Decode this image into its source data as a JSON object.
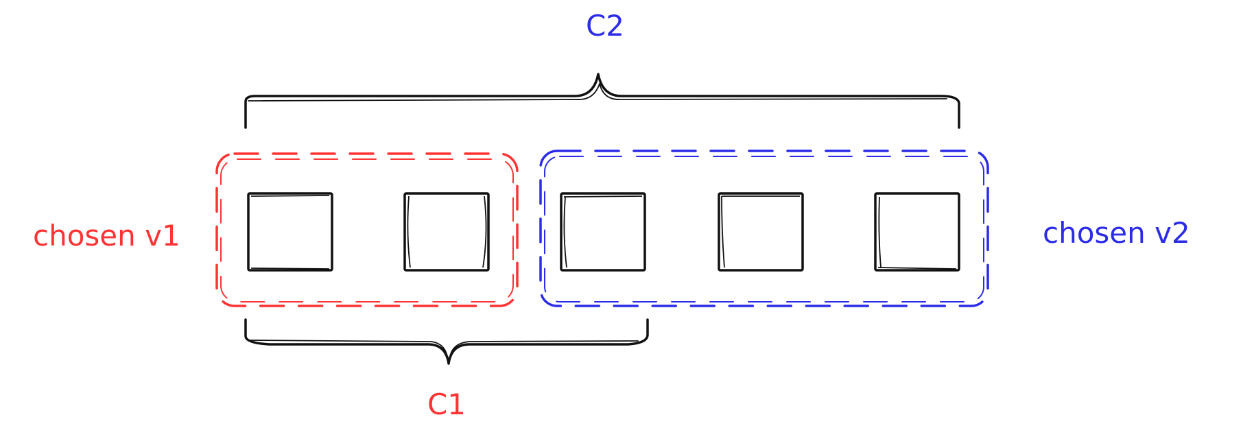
{
  "colors": {
    "ink": "#111111",
    "red": "#ff3333",
    "blue": "#2b2be8"
  },
  "labels": {
    "c2": "C2",
    "c1": "C1",
    "chosen_v1": "chosen v1",
    "chosen_v2": "chosen v2"
  }
}
